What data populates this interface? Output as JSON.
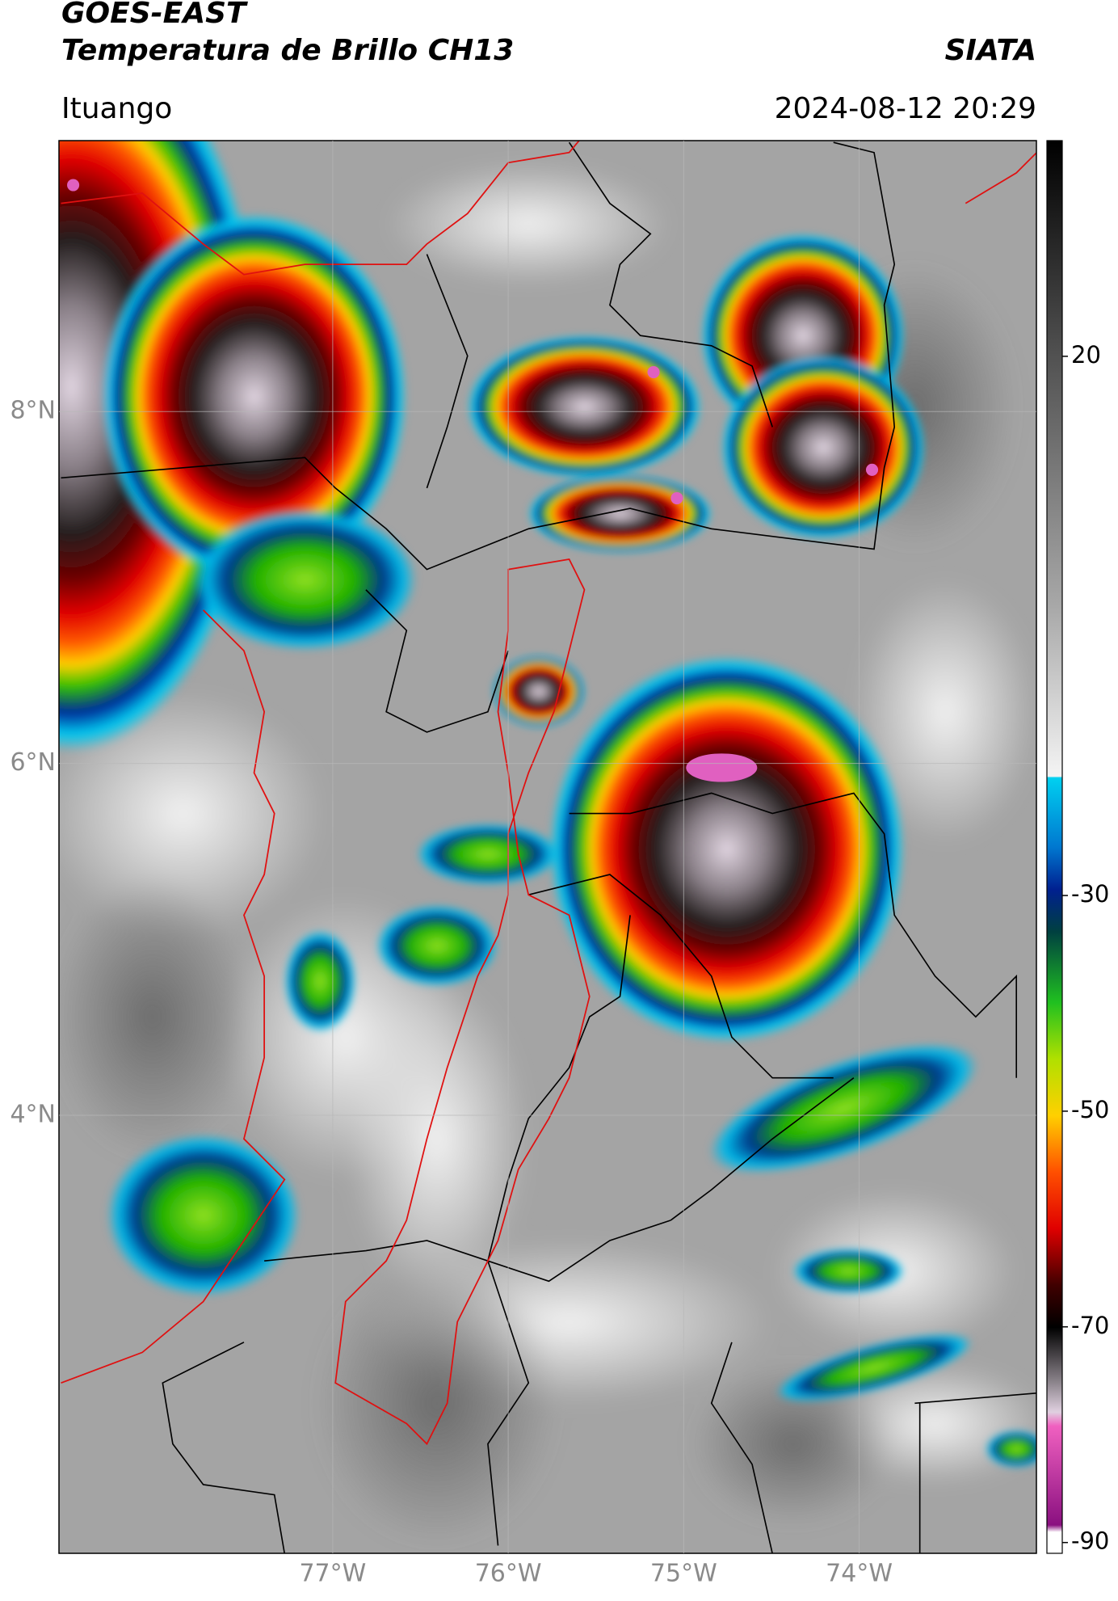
{
  "header": {
    "title": "GOES-EAST",
    "subtitle": "Temperatura de Brillo CH13",
    "source": "SIATA",
    "location": "Ituango",
    "datetime": "2024-08-12 20:29"
  },
  "map": {
    "xlim": [
      -78.56,
      -72.99
    ],
    "ylim": [
      1.51,
      9.54
    ],
    "xticks": [
      {
        "value": -77,
        "label": "77°W"
      },
      {
        "value": -76,
        "label": "76°W"
      },
      {
        "value": -75,
        "label": "75°W"
      },
      {
        "value": -74,
        "label": "74°W"
      }
    ],
    "yticks": [
      {
        "value": 8,
        "label": "8°N"
      },
      {
        "value": 6,
        "label": "6°N"
      },
      {
        "value": 4,
        "label": "4°N"
      }
    ],
    "grid": true
  },
  "colorbar": {
    "lim": [
      -91,
      40
    ],
    "ticks": [
      20,
      -30,
      -50,
      -70,
      -90
    ]
  }
}
